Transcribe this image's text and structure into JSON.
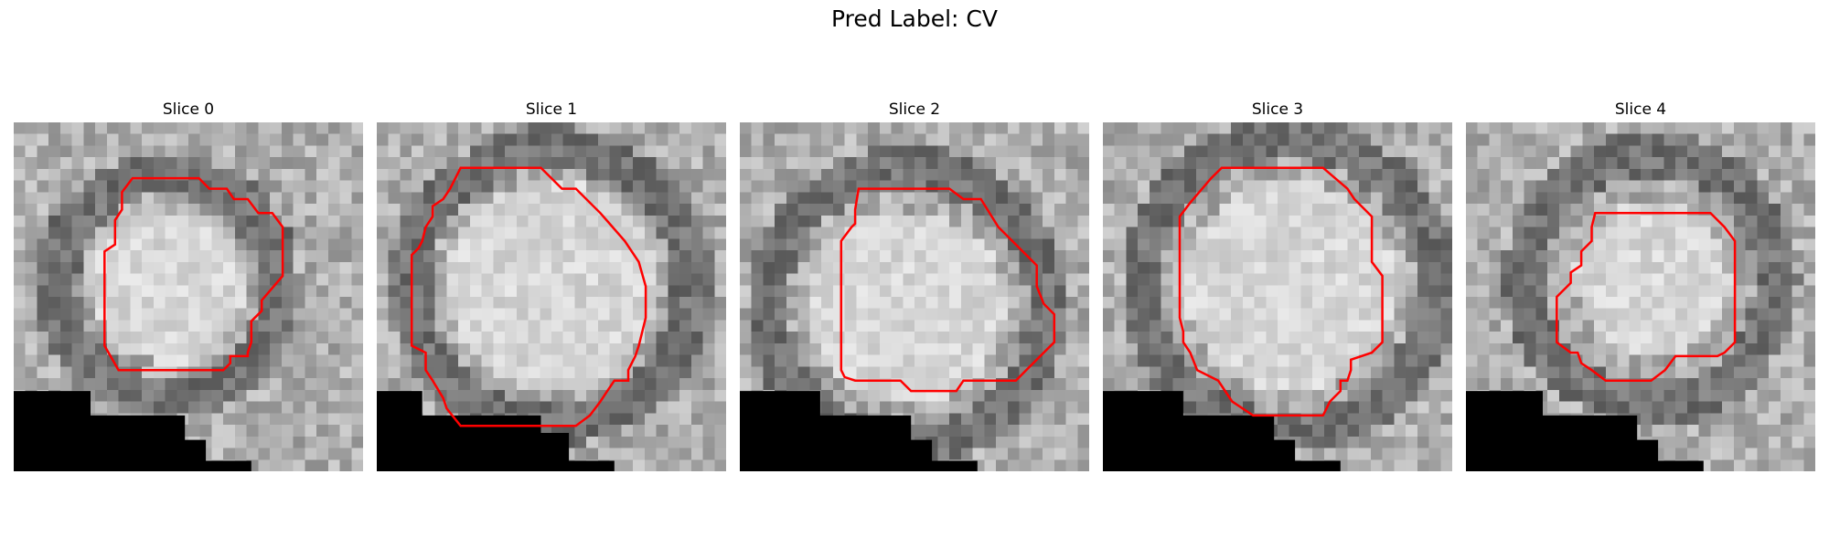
{
  "figure": {
    "title": "Pred Label: CV"
  },
  "slices": [
    {
      "title": "Slice 0",
      "seed": 11,
      "bright_center": [
        0.44,
        0.47
      ],
      "bright_radius": 0.22,
      "ring_radius": 0.32,
      "contour": [
        [
          0.34,
          0.16
        ],
        [
          0.53,
          0.16
        ],
        [
          0.56,
          0.19
        ],
        [
          0.61,
          0.19
        ],
        [
          0.63,
          0.22
        ],
        [
          0.67,
          0.22
        ],
        [
          0.7,
          0.26
        ],
        [
          0.74,
          0.26
        ],
        [
          0.77,
          0.3
        ],
        [
          0.77,
          0.44
        ],
        [
          0.71,
          0.51
        ],
        [
          0.71,
          0.54
        ],
        [
          0.68,
          0.57
        ],
        [
          0.68,
          0.63
        ],
        [
          0.67,
          0.66
        ],
        [
          0.67,
          0.67
        ],
        [
          0.62,
          0.67
        ],
        [
          0.62,
          0.69
        ],
        [
          0.6,
          0.71
        ],
        [
          0.47,
          0.71
        ],
        [
          0.3,
          0.71
        ],
        [
          0.26,
          0.64
        ],
        [
          0.26,
          0.37
        ],
        [
          0.29,
          0.35
        ],
        [
          0.29,
          0.28
        ],
        [
          0.31,
          0.25
        ],
        [
          0.31,
          0.2
        ]
      ],
      "mask": [
        [
          0,
          0.77
        ],
        [
          0.22,
          0.77
        ],
        [
          0.22,
          0.84
        ],
        [
          0.49,
          0.84
        ],
        [
          0.49,
          0.91
        ],
        [
          0.55,
          0.91
        ],
        [
          0.55,
          0.97
        ],
        [
          0.68,
          0.97
        ],
        [
          0.68,
          1
        ],
        [
          0,
          1
        ]
      ]
    },
    {
      "title": "Slice 1",
      "seed": 23,
      "bright_center": [
        0.5,
        0.47
      ],
      "bright_radius": 0.3,
      "ring_radius": 0.4,
      "contour": [
        [
          0.24,
          0.13
        ],
        [
          0.37,
          0.13
        ],
        [
          0.47,
          0.13
        ],
        [
          0.53,
          0.19
        ],
        [
          0.57,
          0.19
        ],
        [
          0.64,
          0.26
        ],
        [
          0.71,
          0.34
        ],
        [
          0.75,
          0.4
        ],
        [
          0.77,
          0.47
        ],
        [
          0.77,
          0.56
        ],
        [
          0.75,
          0.64
        ],
        [
          0.74,
          0.67
        ],
        [
          0.72,
          0.71
        ],
        [
          0.72,
          0.74
        ],
        [
          0.68,
          0.74
        ],
        [
          0.66,
          0.77
        ],
        [
          0.64,
          0.8
        ],
        [
          0.61,
          0.84
        ],
        [
          0.57,
          0.87
        ],
        [
          0.51,
          0.87
        ],
        [
          0.4,
          0.87
        ],
        [
          0.24,
          0.87
        ],
        [
          0.2,
          0.82
        ],
        [
          0.19,
          0.79
        ],
        [
          0.16,
          0.74
        ],
        [
          0.14,
          0.71
        ],
        [
          0.14,
          0.66
        ],
        [
          0.1,
          0.64
        ],
        [
          0.1,
          0.54
        ],
        [
          0.1,
          0.38
        ],
        [
          0.12,
          0.36
        ],
        [
          0.13,
          0.34
        ],
        [
          0.14,
          0.3
        ],
        [
          0.16,
          0.27
        ],
        [
          0.16,
          0.24
        ],
        [
          0.19,
          0.22
        ],
        [
          0.21,
          0.19
        ]
      ],
      "mask": [
        [
          0,
          0.77
        ],
        [
          0.13,
          0.77
        ],
        [
          0.13,
          0.84
        ],
        [
          0.47,
          0.84
        ],
        [
          0.47,
          0.89
        ],
        [
          0.55,
          0.89
        ],
        [
          0.55,
          0.97
        ],
        [
          0.68,
          0.97
        ],
        [
          0.68,
          1
        ],
        [
          0,
          1
        ]
      ]
    },
    {
      "title": "Slice 2",
      "seed": 37,
      "bright_center": [
        0.48,
        0.53
      ],
      "bright_radius": 0.28,
      "ring_radius": 0.4,
      "contour": [
        [
          0.34,
          0.19
        ],
        [
          0.43,
          0.19
        ],
        [
          0.6,
          0.19
        ],
        [
          0.64,
          0.22
        ],
        [
          0.69,
          0.22
        ],
        [
          0.74,
          0.3
        ],
        [
          0.85,
          0.41
        ],
        [
          0.85,
          0.47
        ],
        [
          0.87,
          0.52
        ],
        [
          0.9,
          0.55
        ],
        [
          0.9,
          0.63
        ],
        [
          0.87,
          0.66
        ],
        [
          0.82,
          0.71
        ],
        [
          0.79,
          0.74
        ],
        [
          0.64,
          0.74
        ],
        [
          0.62,
          0.77
        ],
        [
          0.59,
          0.77
        ],
        [
          0.49,
          0.77
        ],
        [
          0.46,
          0.74
        ],
        [
          0.33,
          0.74
        ],
        [
          0.3,
          0.73
        ],
        [
          0.29,
          0.71
        ],
        [
          0.29,
          0.52
        ],
        [
          0.29,
          0.34
        ],
        [
          0.32,
          0.3
        ],
        [
          0.33,
          0.29
        ],
        [
          0.33,
          0.25
        ]
      ],
      "mask": [
        [
          0,
          0.77
        ],
        [
          0.23,
          0.77
        ],
        [
          0.23,
          0.84
        ],
        [
          0.49,
          0.84
        ],
        [
          0.49,
          0.91
        ],
        [
          0.55,
          0.91
        ],
        [
          0.55,
          0.97
        ],
        [
          0.68,
          0.97
        ],
        [
          0.68,
          1
        ],
        [
          0,
          1
        ]
      ]
    },
    {
      "title": "Slice 3",
      "seed": 53,
      "bright_center": [
        0.53,
        0.47
      ],
      "bright_radius": 0.3,
      "ring_radius": 0.42,
      "contour": [
        [
          0.34,
          0.13
        ],
        [
          0.43,
          0.13
        ],
        [
          0.63,
          0.13
        ],
        [
          0.7,
          0.19
        ],
        [
          0.72,
          0.22
        ],
        [
          0.77,
          0.27
        ],
        [
          0.77,
          0.37
        ],
        [
          0.77,
          0.4
        ],
        [
          0.8,
          0.44
        ],
        [
          0.8,
          0.56
        ],
        [
          0.8,
          0.63
        ],
        [
          0.77,
          0.66
        ],
        [
          0.71,
          0.68
        ],
        [
          0.71,
          0.71
        ],
        [
          0.7,
          0.74
        ],
        [
          0.68,
          0.74
        ],
        [
          0.68,
          0.77
        ],
        [
          0.65,
          0.8
        ],
        [
          0.63,
          0.84
        ],
        [
          0.6,
          0.84
        ],
        [
          0.57,
          0.84
        ],
        [
          0.5,
          0.84
        ],
        [
          0.43,
          0.84
        ],
        [
          0.37,
          0.8
        ],
        [
          0.33,
          0.74
        ],
        [
          0.27,
          0.71
        ],
        [
          0.25,
          0.66
        ],
        [
          0.23,
          0.63
        ],
        [
          0.23,
          0.6
        ],
        [
          0.22,
          0.56
        ],
        [
          0.22,
          0.45
        ],
        [
          0.22,
          0.27
        ],
        [
          0.25,
          0.23
        ],
        [
          0.31,
          0.16
        ]
      ],
      "mask": [
        [
          0,
          0.77
        ],
        [
          0.23,
          0.77
        ],
        [
          0.23,
          0.84
        ],
        [
          0.49,
          0.84
        ],
        [
          0.49,
          0.91
        ],
        [
          0.55,
          0.91
        ],
        [
          0.55,
          0.97
        ],
        [
          0.68,
          0.97
        ],
        [
          0.68,
          1
        ],
        [
          0,
          1
        ]
      ]
    },
    {
      "title": "Slice 4",
      "seed": 71,
      "bright_center": [
        0.53,
        0.45
      ],
      "bright_radius": 0.22,
      "ring_radius": 0.36,
      "contour": [
        [
          0.37,
          0.26
        ],
        [
          0.42,
          0.26
        ],
        [
          0.7,
          0.26
        ],
        [
          0.74,
          0.3
        ],
        [
          0.77,
          0.34
        ],
        [
          0.77,
          0.37
        ],
        [
          0.77,
          0.44
        ],
        [
          0.77,
          0.63
        ],
        [
          0.74,
          0.66
        ],
        [
          0.72,
          0.67
        ],
        [
          0.6,
          0.67
        ],
        [
          0.57,
          0.71
        ],
        [
          0.53,
          0.74
        ],
        [
          0.49,
          0.74
        ],
        [
          0.45,
          0.74
        ],
        [
          0.4,
          0.74
        ],
        [
          0.36,
          0.71
        ],
        [
          0.33,
          0.69
        ],
        [
          0.32,
          0.66
        ],
        [
          0.3,
          0.66
        ],
        [
          0.26,
          0.63
        ],
        [
          0.26,
          0.5
        ],
        [
          0.3,
          0.46
        ],
        [
          0.3,
          0.43
        ],
        [
          0.33,
          0.41
        ],
        [
          0.33,
          0.37
        ],
        [
          0.36,
          0.34
        ],
        [
          0.36,
          0.3
        ]
      ],
      "mask": [
        [
          0,
          0.77
        ],
        [
          0.22,
          0.77
        ],
        [
          0.22,
          0.84
        ],
        [
          0.49,
          0.84
        ],
        [
          0.49,
          0.91
        ],
        [
          0.55,
          0.91
        ],
        [
          0.55,
          0.97
        ],
        [
          0.68,
          0.97
        ],
        [
          0.68,
          1
        ],
        [
          0,
          1
        ]
      ]
    }
  ],
  "colors": {
    "contour": "#ff0000",
    "mask": "#000000",
    "title_text": "#000000"
  }
}
